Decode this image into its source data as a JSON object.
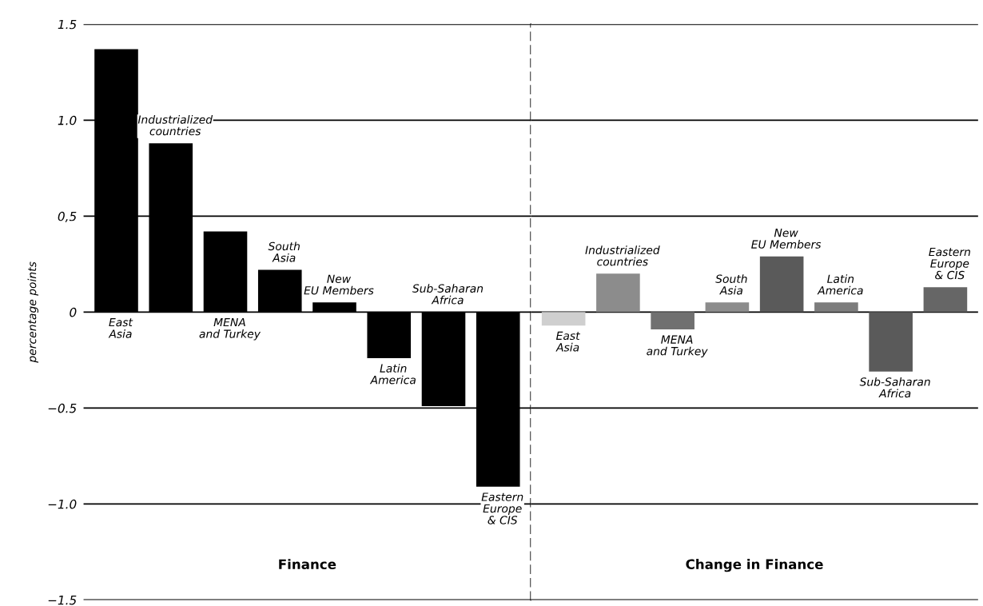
{
  "chart_data": [
    {
      "type": "bar",
      "ylabel": "percentage points",
      "categories": [
        "East Asia",
        "Industrialized countries",
        "MENA and Turkey",
        "South Asia",
        "New EU Members",
        "Latin America",
        "Sub-Saharan Africa",
        "Eastern Europe & CIS"
      ],
      "values": [
        1.37,
        0.88,
        0.42,
        0.22,
        0.05,
        -0.24,
        -0.49,
        -0.91
      ],
      "colors": [
        "#000000",
        "#000000",
        "#000000",
        "#000000",
        "#000000",
        "#000000",
        "#000000",
        "#000000"
      ],
      "ylim": [
        -1.5,
        1.5
      ],
      "yticks": [
        {
          "value": 1.5,
          "label": "1.5"
        },
        {
          "value": 1.0,
          "label": "1.0"
        },
        {
          "value": 0.5,
          "label": "0,5"
        },
        {
          "value": 0,
          "label": "0"
        },
        {
          "value": -0.5,
          "label": "−0.5"
        },
        {
          "value": -1.0,
          "label": "−1.0"
        },
        {
          "value": -1.5,
          "label": "−1.5"
        }
      ],
      "grid": "y",
      "annotations": [
        "Finance"
      ]
    },
    {
      "type": "bar",
      "categories": [
        "East Asia",
        "Industrialized countries",
        "MENA and Turkey",
        "South Asia",
        "New EU Members",
        "Latin America",
        "Sub-Saharan Africa",
        "Eastern Europe & CIS"
      ],
      "values": [
        -0.07,
        0.2,
        -0.09,
        0.05,
        0.29,
        0.05,
        -0.31,
        0.13
      ],
      "colors": [
        "#cfcfcf",
        "#8c8c8c",
        "#707070",
        "#8c8c8c",
        "#5a5a5a",
        "#7c7c7c",
        "#5a5a5a",
        "#666666"
      ],
      "ylim": [
        -1.5,
        1.5
      ],
      "yticks": [
        1.5,
        1.0,
        0.5,
        0,
        -0.5,
        -1.0,
        -1.5
      ],
      "tick_labels": "x",
      "grid": "y",
      "annotations": [
        "Change in Finance"
      ]
    }
  ]
}
